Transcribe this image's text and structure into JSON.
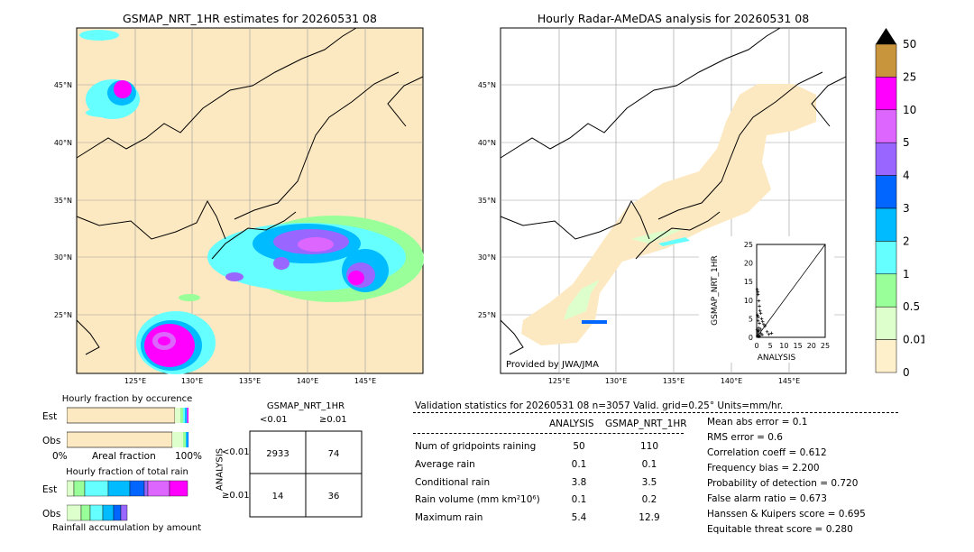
{
  "left_map": {
    "title": "GSMAP_NRT_1HR estimates for 20260531 08",
    "lat_ticks": [
      "45°N",
      "40°N",
      "35°N",
      "30°N",
      "25°N"
    ],
    "lon_ticks": [
      "125°E",
      "130°E",
      "135°E",
      "140°E",
      "145°E"
    ]
  },
  "right_map": {
    "title": "Hourly Radar-AMeDAS analysis for 20260531 08",
    "lat_ticks": [
      "45°N",
      "40°N",
      "35°N",
      "30°N",
      "25°N"
    ],
    "lon_ticks": [
      "125°E",
      "130°E",
      "135°E",
      "140°E",
      "145°E"
    ],
    "credit": "Provided by JWA/JMA"
  },
  "colorbar": {
    "labels": [
      "50",
      "25",
      "10",
      "5",
      "4",
      "3",
      "2",
      "1",
      "0.5",
      "0.01",
      "0"
    ],
    "colors": [
      "#c8943c",
      "#ff00ff",
      "#dd66ff",
      "#9966ff",
      "#0066ff",
      "#00bbff",
      "#66ffff",
      "#99ff99",
      "#ddffcc",
      "#fff0cc"
    ],
    "extend_color": "#000000"
  },
  "scatter": {
    "xlabel": "ANALYSIS",
    "ylabel": "GSMAP_NRT_1HR",
    "ticks": [
      "0",
      "5",
      "10",
      "15",
      "20",
      "25"
    ]
  },
  "occurrence": {
    "title": "Hourly fraction by occurence",
    "rows": [
      "Est",
      "Obs"
    ],
    "axis_left": "0%",
    "axis_mid": "Areal fraction",
    "axis_right": "100%"
  },
  "total_rain": {
    "title": "Hourly fraction of total rain",
    "rows": [
      "Est",
      "Obs"
    ],
    "footer": "Rainfall accumulation by amount"
  },
  "contingency": {
    "title": "GSMAP_NRT_1HR",
    "col_labels": [
      "<0.01",
      "≥0.01"
    ],
    "row_axis": "ANALYSIS",
    "row_labels": [
      "<0.01",
      "≥0.01"
    ],
    "cells": [
      [
        "2933",
        "74"
      ],
      [
        "14",
        "36"
      ]
    ]
  },
  "validation": {
    "header": "Validation statistics for 20260531 08  n=3057 Valid. grid=0.25° Units=mm/hr.",
    "col_headers": [
      "ANALYSIS",
      "GSMAP_NRT_1HR"
    ],
    "rows": [
      {
        "label": "Num of gridpoints raining",
        "analysis": "50",
        "gsmap": "110"
      },
      {
        "label": "Average rain",
        "analysis": "0.1",
        "gsmap": "0.1"
      },
      {
        "label": "Conditional rain",
        "analysis": "3.8",
        "gsmap": "3.5"
      },
      {
        "label": "Rain volume (mm km²10⁶)",
        "analysis": "0.1",
        "gsmap": "0.2"
      },
      {
        "label": "Maximum rain",
        "analysis": "5.4",
        "gsmap": "12.9"
      }
    ],
    "scores": [
      "Mean abs error =    0.1",
      "RMS error =    0.6",
      "Correlation coeff =  0.612",
      "Frequency bias =  2.200",
      "Probability of detection =  0.720",
      "False alarm ratio =  0.673",
      "Hanssen & Kuipers score =  0.695",
      "Equitable threat score =  0.280"
    ]
  },
  "chart_data": {
    "type": "scatter",
    "xlabel": "ANALYSIS",
    "ylabel": "GSMAP_NRT_1HR",
    "xlim": [
      0,
      25
    ],
    "ylim": [
      0,
      25
    ],
    "x": [
      0.2,
      0.4,
      0.5,
      0.8,
      1.0,
      1.2,
      1.5,
      0.3,
      0.6,
      1.8,
      2.2,
      2.6,
      3.0,
      0.5,
      1.0,
      0.7,
      0.2,
      0.9,
      1.4,
      0.4,
      3.8,
      4.5,
      0.6,
      1.1,
      0.3,
      2.0,
      1.6,
      0.8,
      5.4,
      0.5
    ],
    "y": [
      12.9,
      12.2,
      11.5,
      9.8,
      8.4,
      7.2,
      6.5,
      6.0,
      5.5,
      5.0,
      4.2,
      3.5,
      3.0,
      4.5,
      3.8,
      2.6,
      2.0,
      1.8,
      2.2,
      1.2,
      1.5,
      0.8,
      0.5,
      0.3,
      0.4,
      0.7,
      1.0,
      0.2,
      1.1,
      1.6
    ]
  }
}
